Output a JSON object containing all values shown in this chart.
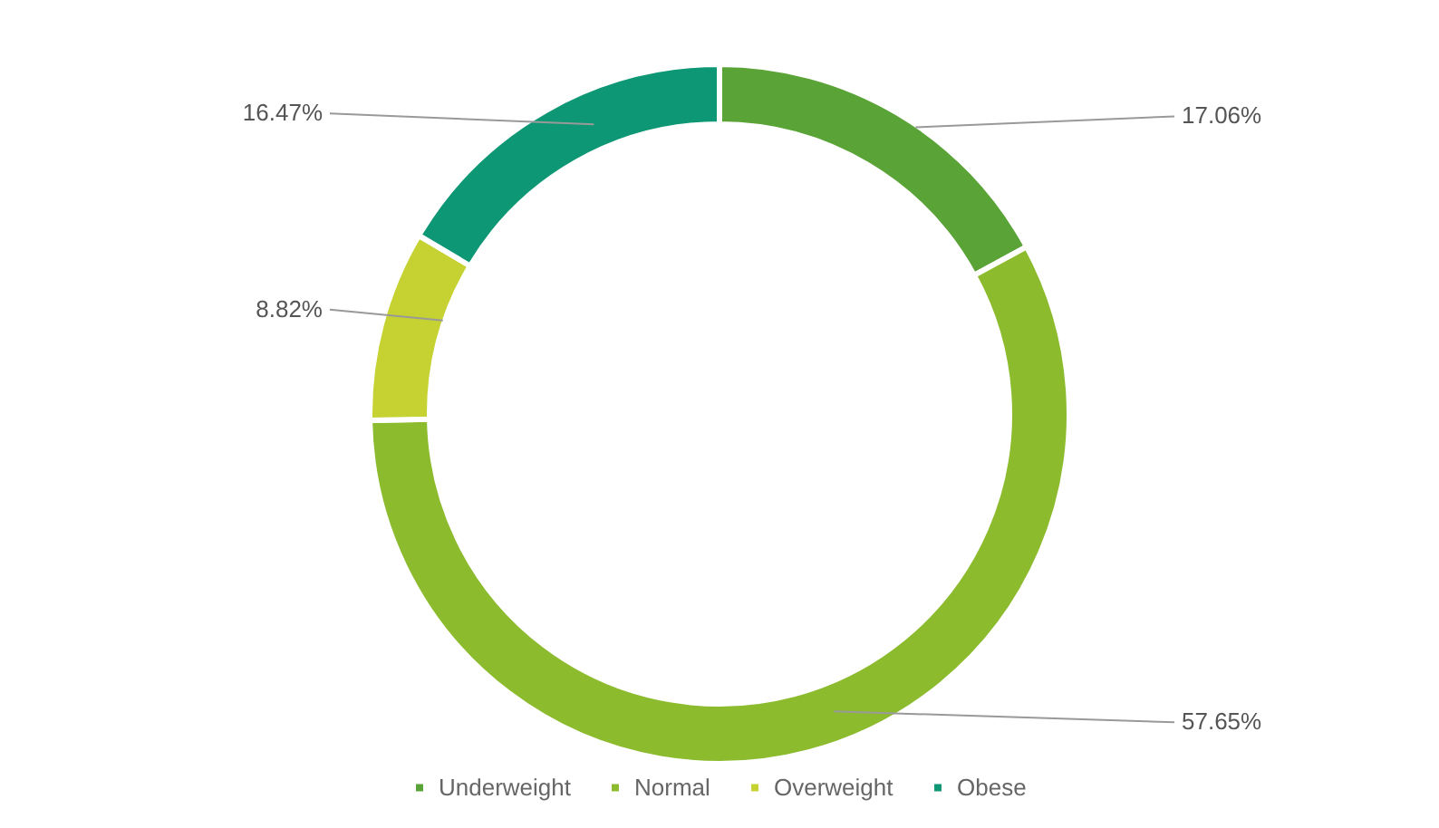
{
  "chart_data": {
    "type": "donut",
    "categories": [
      "Underweight",
      "Normal",
      "Overweight",
      "Obese"
    ],
    "values": [
      17.06,
      57.65,
      8.82,
      16.47
    ],
    "value_labels": [
      "17.06%",
      "57.65%",
      "8.82%",
      "16.47%"
    ],
    "colors": [
      "#5aa337",
      "#8cbb2e",
      "#c5d231",
      "#0d9775"
    ],
    "legend": "bottom"
  }
}
